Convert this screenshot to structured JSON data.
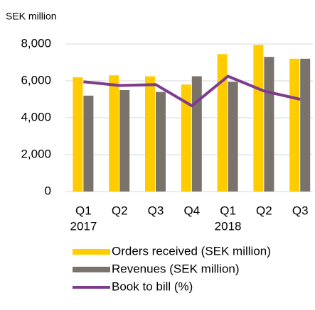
{
  "chart_data": {
    "type": "bar_line",
    "title": "SEK million",
    "categories": [
      "Q1",
      "Q2",
      "Q3",
      "Q4",
      "Q1",
      "Q2",
      "Q3"
    ],
    "x_groups": [
      {
        "label": "2017",
        "start": 0
      },
      {
        "label": "2018",
        "start": 4
      }
    ],
    "series": [
      {
        "name": "Orders received (SEK million)",
        "color": "#ffcc00",
        "type": "bar",
        "values": [
          6200,
          6300,
          6250,
          5800,
          7450,
          7950,
          7200
        ]
      },
      {
        "name": "Revenues (SEK million)",
        "color": "#7a736c",
        "type": "bar",
        "values": [
          5200,
          5500,
          5400,
          6250,
          5950,
          7300,
          7200
        ]
      },
      {
        "name": "Book to bill (%)",
        "color": "#7d3c8c",
        "type": "line",
        "axis": "y2",
        "values": [
          119,
          115,
          116,
          93,
          125,
          109,
          100
        ]
      }
    ],
    "ylim": [
      0,
      8000
    ],
    "yticks": [
      {
        "value": 0,
        "label": "0"
      },
      {
        "value": 2000,
        "label": "2,000"
      },
      {
        "value": 4000,
        "label": "4,000"
      },
      {
        "value": 6000,
        "label": "6,000"
      },
      {
        "value": 8000,
        "label": "8,000"
      }
    ],
    "y2lim": [
      0,
      160
    ],
    "grid": true
  }
}
